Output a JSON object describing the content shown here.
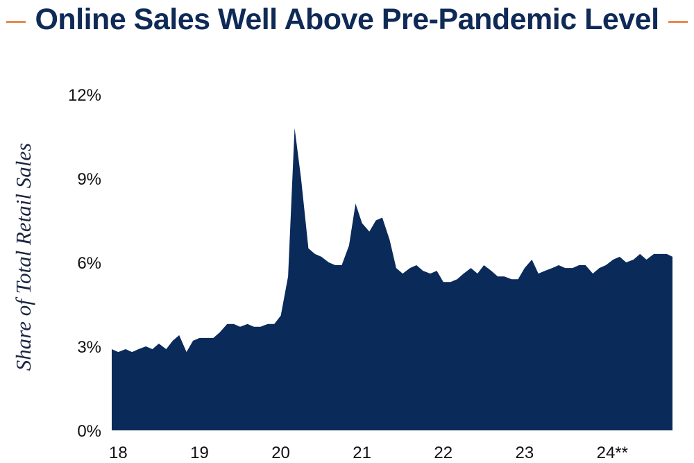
{
  "colors": {
    "title": "#0f2a57",
    "accent_dash": "#e8894a",
    "area_fill": "#0a2a5a",
    "text": "#111111"
  },
  "chart_data": {
    "type": "area",
    "title": "Online Sales Well Above Pre-Pandemic Level",
    "ylabel": "Share of Total Retail Sales",
    "xlabel": "",
    "ylim": [
      0,
      12
    ],
    "y_ticks": [
      {
        "value": 0,
        "label": "0%"
      },
      {
        "value": 3,
        "label": "3%"
      },
      {
        "value": 6,
        "label": "6%"
      },
      {
        "value": 9,
        "label": "9%"
      },
      {
        "value": 12,
        "label": "12%"
      }
    ],
    "x_range": [
      2018.0,
      2024.9
    ],
    "x_ticks": [
      {
        "value": 2018,
        "label": "18"
      },
      {
        "value": 2019,
        "label": "19"
      },
      {
        "value": 2020,
        "label": "20"
      },
      {
        "value": 2021,
        "label": "21"
      },
      {
        "value": 2022,
        "label": "22"
      },
      {
        "value": 2023,
        "label": "23"
      },
      {
        "value": 2024,
        "label": "24**"
      }
    ],
    "grid": false,
    "legend": "none",
    "series": [
      {
        "x": [
          2018.0,
          2018.08,
          2018.17,
          2018.25,
          2018.33,
          2018.42,
          2018.5,
          2018.58,
          2018.67,
          2018.75,
          2018.83,
          2018.92,
          2019.0,
          2019.08,
          2019.17,
          2019.25,
          2019.33,
          2019.42,
          2019.5,
          2019.58,
          2019.67,
          2019.75,
          2019.83,
          2019.92,
          2020.0,
          2020.08,
          2020.17,
          2020.25,
          2020.33,
          2020.42,
          2020.5,
          2020.58,
          2020.67,
          2020.75,
          2020.83,
          2020.92,
          2021.0,
          2021.08,
          2021.17,
          2021.25,
          2021.33,
          2021.42,
          2021.5,
          2021.58,
          2021.67,
          2021.75,
          2021.83,
          2021.92,
          2022.0,
          2022.08,
          2022.17,
          2022.25,
          2022.33,
          2022.42,
          2022.5,
          2022.58,
          2022.67,
          2022.75,
          2022.83,
          2022.92,
          2023.0,
          2023.08,
          2023.17,
          2023.25,
          2023.33,
          2023.42,
          2023.5,
          2023.58,
          2023.67,
          2023.75,
          2023.83,
          2023.92,
          2024.0,
          2024.08,
          2024.17,
          2024.25,
          2024.33,
          2024.42,
          2024.5,
          2024.58,
          2024.67,
          2024.75,
          2024.83,
          2024.9
        ],
        "values": [
          2.9,
          2.8,
          2.9,
          2.8,
          2.9,
          3.0,
          2.9,
          3.1,
          2.9,
          3.2,
          3.4,
          2.8,
          3.2,
          3.3,
          3.3,
          3.3,
          3.5,
          3.8,
          3.8,
          3.7,
          3.8,
          3.7,
          3.7,
          3.8,
          3.8,
          4.1,
          5.5,
          10.8,
          9.0,
          6.5,
          6.3,
          6.2,
          6.0,
          5.9,
          5.9,
          6.6,
          8.1,
          7.4,
          7.1,
          7.5,
          7.6,
          6.8,
          5.8,
          5.6,
          5.8,
          5.9,
          5.7,
          5.6,
          5.7,
          5.3,
          5.3,
          5.4,
          5.6,
          5.8,
          5.6,
          5.9,
          5.7,
          5.5,
          5.5,
          5.4,
          5.4,
          5.8,
          6.1,
          5.6,
          5.7,
          5.8,
          5.9,
          5.8,
          5.8,
          5.9,
          5.9,
          5.6,
          5.8,
          5.9,
          6.1,
          6.2,
          6.0,
          6.1,
          6.3,
          6.1,
          6.3,
          6.3,
          6.3,
          6.2
        ]
      }
    ]
  }
}
